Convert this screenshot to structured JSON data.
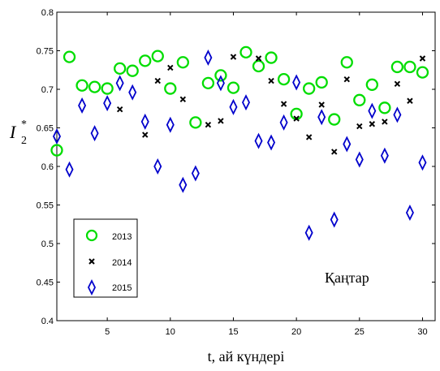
{
  "chart_data": {
    "type": "scatter",
    "xlabel": "t, ай күндері",
    "ylabel_main": "I",
    "ylabel_sub": "2",
    "ylabel_sup": "*",
    "annotation": "Қаңтар",
    "xlim": [
      1,
      31
    ],
    "ylim": [
      0.4,
      0.8
    ],
    "xticks": [
      5,
      10,
      15,
      20,
      25,
      30
    ],
    "yticks": [
      0.4,
      0.45,
      0.5,
      0.55,
      0.6,
      0.65,
      0.7,
      0.75,
      0.8
    ],
    "grid": false,
    "legend_position": "bottom-left",
    "series": [
      {
        "name": "2013",
        "marker": "circle",
        "color": "#00dd00",
        "x": [
          1,
          2,
          3,
          4,
          5,
          6,
          7,
          8,
          9,
          10,
          11,
          12,
          13,
          14,
          15,
          16,
          17,
          18,
          19,
          20,
          21,
          22,
          23,
          24,
          25,
          26,
          27,
          28,
          29,
          30
        ],
        "y": [
          0.621,
          0.742,
          0.705,
          0.703,
          0.701,
          0.727,
          0.724,
          0.737,
          0.743,
          0.701,
          0.735,
          0.657,
          0.708,
          0.718,
          0.702,
          0.748,
          0.73,
          0.741,
          0.713,
          0.668,
          0.701,
          0.709,
          0.661,
          0.735,
          0.686,
          0.706,
          0.676,
          0.729,
          0.729,
          0.722
        ]
      },
      {
        "name": "2014",
        "marker": "x",
        "color": "#000000",
        "x": [
          6,
          8,
          9,
          10,
          11,
          13,
          14,
          15,
          17,
          18,
          19,
          20,
          21,
          22,
          23,
          24,
          25,
          26,
          27,
          28,
          29,
          30
        ],
        "y": [
          0.674,
          0.641,
          0.711,
          0.728,
          0.687,
          0.654,
          0.659,
          0.742,
          0.74,
          0.711,
          0.681,
          0.662,
          0.638,
          0.68,
          0.619,
          0.713,
          0.652,
          0.655,
          0.658,
          0.707,
          0.685,
          0.74
        ]
      },
      {
        "name": "2015",
        "marker": "diamond",
        "color": "#0000cc",
        "x": [
          1,
          2,
          3,
          4,
          5,
          6,
          7,
          8,
          9,
          10,
          11,
          12,
          13,
          14,
          15,
          16,
          17,
          18,
          19,
          20,
          21,
          22,
          23,
          24,
          25,
          26,
          27,
          28,
          29,
          30
        ],
        "y": [
          0.639,
          0.596,
          0.679,
          0.643,
          0.682,
          0.708,
          0.696,
          0.658,
          0.6,
          0.654,
          0.576,
          0.591,
          0.741,
          0.708,
          0.677,
          0.683,
          0.633,
          0.631,
          0.657,
          0.709,
          0.514,
          0.664,
          0.531,
          0.629,
          0.609,
          0.672,
          0.614,
          0.667,
          0.54,
          0.605
        ]
      }
    ]
  }
}
